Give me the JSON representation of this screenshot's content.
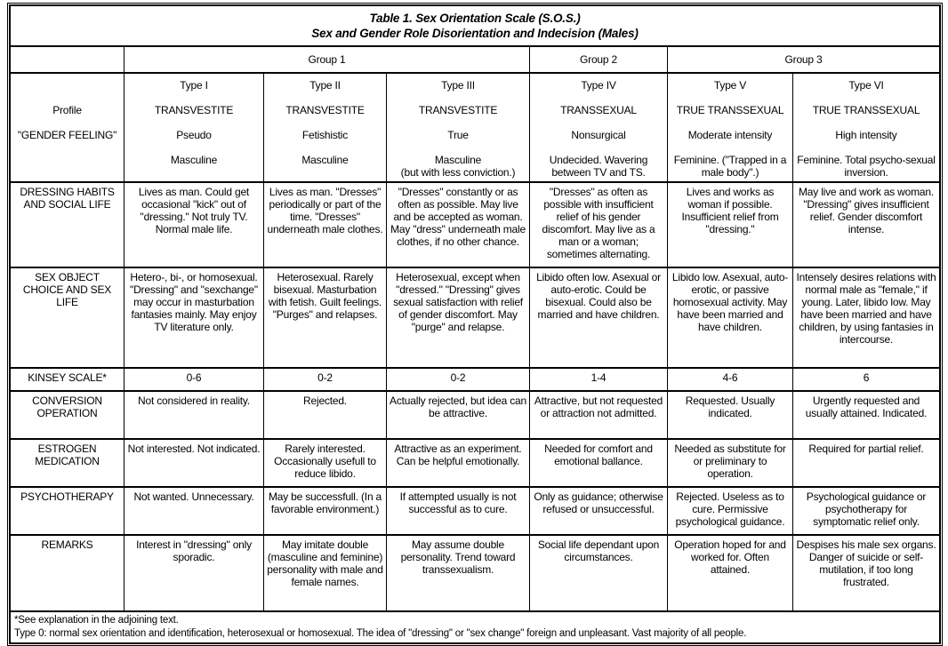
{
  "title": {
    "line1": "Table 1. Sex Orientation Scale (S.O.S.)",
    "line2": "Sex and Gender Role Disorientation and Indecision (Males)"
  },
  "groups": [
    "Group 1",
    "Group 2",
    "Group 3"
  ],
  "profile": {
    "labels": [
      "Profile",
      "\"GENDER FEELING\""
    ],
    "types": [
      {
        "type": "Type I",
        "category": "TRANSVESTITE",
        "feeling": "Pseudo",
        "gender": "Masculine"
      },
      {
        "type": "Type II",
        "category": "TRANSVESTITE",
        "feeling": "Fetishistic",
        "gender": "Masculine"
      },
      {
        "type": "Type III",
        "category": "TRANSVESTITE",
        "feeling": "True",
        "gender": "Masculine\n(but with less conviction.)"
      },
      {
        "type": "Type IV",
        "category": "TRANSSEXUAL",
        "feeling": "Nonsurgical",
        "gender": "Undecided. Wavering between TV and TS."
      },
      {
        "type": "Type V",
        "category": "TRUE TRANSSEXUAL",
        "feeling": "Moderate intensity",
        "gender": "Feminine. (\"Trapped in a male body\".)"
      },
      {
        "type": "Type VI",
        "category": "TRUE TRANSSEXUAL",
        "feeling": "High intensity",
        "gender": "Feminine. Total psycho-sexual inversion."
      }
    ]
  },
  "rows": [
    {
      "label": "DRESSING HABITS AND SOCIAL LIFE",
      "cells": [
        "Lives as man. Could get occasional \"kick\" out of \"dressing.\" Not truly TV. Normal male life.",
        "Lives as man. \"Dresses\" periodically or part of the time. \"Dresses\" underneath male clothes.",
        "\"Dresses\" constantly or as often as possible. May live and be accepted as woman. May \"dress\" underneath male clothes, if no other chance.",
        "\"Dresses\" as often as possible with insufficient relief of his gender discomfort. May live as a man or a woman; sometimes alternating.",
        "Lives and works as woman if possible. Insufficient relief from \"dressing.\"",
        "May live and work as woman. \"Dressing\" gives insufficient relief. Gender discomfort intense."
      ]
    },
    {
      "label": "SEX OBJECT CHOICE AND SEX LIFE",
      "cells": [
        "Hetero-, bi-, or homosexual. \"Dressing\" and \"sexchange\" may occur in masturbation fantasies mainly. May enjoy TV literature only.",
        "Heterosexual. Rarely bisexual. Masturbation with fetish. Guilt feelings. \"Purges\" and relapses.",
        "Heterosexual, except when \"dressed.\" \"Dressing\" gives sexual satisfaction with relief of gender discomfort. May \"purge\" and relapse.",
        "Libido often low. Asexual or auto-erotic. Could be bisexual. Could also be married and have children.",
        "Libido low. Asexual, auto-erotic, or passive homosexual activity. May have been married and have children.",
        "Intensely desires relations with normal male as \"female,\" if young. Later, libido low. May have been married and have children, by using fantasies in intercourse."
      ]
    },
    {
      "label": "KINSEY SCALE*",
      "cells": [
        "0-6",
        "0-2",
        "0-2",
        "1-4",
        "4-6",
        "6"
      ]
    },
    {
      "label": "CONVERSION OPERATION",
      "cells": [
        "Not considered in reality.",
        "Rejected.",
        "Actually rejected, but idea can be attractive.",
        "Attractive, but not requested or attraction not admitted.",
        "Requested. Usually indicated.",
        "Urgently requested and usually attained. Indicated."
      ]
    },
    {
      "label": "ESTROGEN MEDICATION",
      "cells": [
        "Not interested. Not indicated.",
        "Rarely interested. Occasionally usefull to reduce libido.",
        "Attractive as an experiment. Can be helpful emotionally.",
        "Needed for comfort and emotional ballance.",
        "Needed as substitute for or preliminary to operation.",
        "Required for partial relief."
      ]
    },
    {
      "label": "PSYCHOTHERAPY",
      "cells": [
        "Not wanted. Unnecessary.",
        "May be successfull. (In a favorable environment.)",
        "If attempted usually is not successful as to cure.",
        "Only as guidance; otherwise refused or unsuccessful.",
        "Rejected. Useless as to cure. Permissive psychological guidance.",
        "Psychological guidance or psychotherapy for symptomatic relief only."
      ]
    },
    {
      "label": "REMARKS",
      "cells": [
        "Interest in \"dressing\" only sporadic.",
        "May imitate double (masculine and feminine) personality with male and female names.",
        "May assume double personality. Trend toward transsexualism.",
        "Social life dependant upon circumstances.",
        "Operation hoped for and worked for. Often attained.",
        "Despises his male sex organs. Danger of suicide or self-mutilation, if too long frustrated."
      ]
    }
  ],
  "footnotes": [
    "*See explanation in the adjoining text.",
    "Type 0: normal sex orientation and identification, heterosexual or homosexual. The idea of \"dressing\" or \"sex change\" foreign and unpleasant. Vast majority of all people."
  ]
}
